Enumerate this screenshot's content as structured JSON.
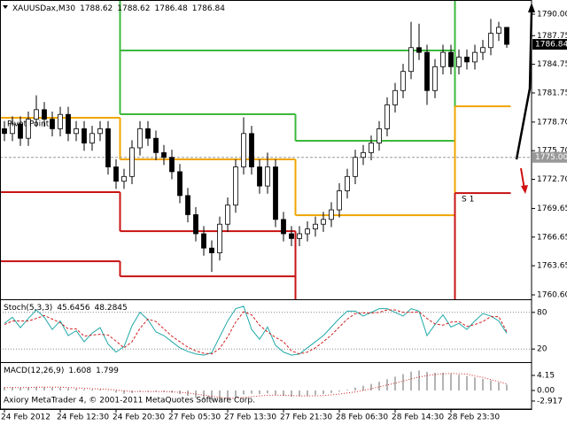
{
  "chart_data": [
    {
      "type": "candlestick",
      "title": "XAUUSDax,M30",
      "categories": [
        "24 Feb 2012",
        null,
        null,
        null,
        null,
        null,
        null,
        "24 Feb 12:30",
        null,
        null,
        null,
        null,
        null,
        null,
        "24 Feb 20:30",
        null,
        null,
        null,
        null,
        null,
        null,
        "27 Feb 05:30",
        null,
        null,
        null,
        null,
        null,
        null,
        "27 Feb 13:30",
        null,
        null,
        null,
        null,
        null,
        null,
        "27 Feb 21:30",
        null,
        null,
        null,
        null,
        null,
        null,
        "28 Feb 06:30",
        null,
        null,
        null,
        null,
        null,
        null,
        "28 Feb 14:30",
        null,
        null,
        null,
        null,
        null,
        null,
        "28 Feb 23:30",
        null,
        null,
        null,
        null,
        null,
        null,
        null
      ],
      "open": [
        1778,
        1777.5,
        1778.5,
        1777,
        1779,
        1780,
        1779,
        1778,
        1779.5,
        1777.5,
        1778,
        1776.5,
        1777.5,
        1778,
        1774,
        1772.5,
        1773,
        1776,
        1778,
        1777,
        1775.5,
        1775,
        1773.5,
        1771,
        1769,
        1767,
        1765.5,
        1765,
        1768,
        1770,
        1774,
        1777.5,
        1774,
        1772,
        1774,
        1768.5,
        1767,
        1766.5,
        1767,
        1767.5,
        1768,
        1768.5,
        1769.5,
        1771.5,
        1773,
        1775,
        1775.5,
        1776.5,
        1778,
        1780.5,
        1782,
        1784,
        1786.5,
        1786,
        1782,
        1784.5,
        1786,
        1784.5,
        1785.5,
        1785,
        1786,
        1786.5,
        1788,
        1788.62
      ],
      "high": [
        1778.8,
        1779.3,
        1779.3,
        1779.8,
        1781.5,
        1780.8,
        1779.8,
        1780.3,
        1780.3,
        1778.8,
        1778.8,
        1778.3,
        1778.8,
        1778.8,
        1774.8,
        1773.8,
        1776.8,
        1778.8,
        1778.8,
        1777.8,
        1776.3,
        1775.8,
        1774.3,
        1771.8,
        1769.8,
        1767.8,
        1766.3,
        1768.8,
        1770.8,
        1774.8,
        1779.2,
        1778.3,
        1774.8,
        1775.5,
        1774.8,
        1769.3,
        1767.8,
        1767.8,
        1768.3,
        1768.8,
        1769.3,
        1770.3,
        1772.3,
        1773.8,
        1775.8,
        1776.3,
        1777.3,
        1778.8,
        1781.3,
        1782.8,
        1784.8,
        1789.2,
        1789,
        1786.8,
        1785.3,
        1786.8,
        1786.8,
        1786.3,
        1786.3,
        1786.8,
        1787.3,
        1789.5,
        1789.2,
        1788.62
      ],
      "low": [
        1776.7,
        1776.7,
        1776.2,
        1776.2,
        1778.2,
        1778.2,
        1777.2,
        1777.2,
        1776.7,
        1776.7,
        1775.7,
        1775.7,
        1776.7,
        1773.2,
        1771.7,
        1771.7,
        1772.2,
        1775.2,
        1776.2,
        1774.7,
        1774.2,
        1772.7,
        1770.2,
        1768.2,
        1766.2,
        1764.7,
        1763,
        1764.2,
        1767.2,
        1769.2,
        1773.2,
        1773.2,
        1771.2,
        1771.2,
        1767.7,
        1766.2,
        1765.7,
        1765.7,
        1766.2,
        1766.7,
        1767.2,
        1767.7,
        1768.7,
        1770.7,
        1772.2,
        1774.2,
        1774.7,
        1775.7,
        1777.2,
        1779.7,
        1781.2,
        1783.2,
        1785.2,
        1780.5,
        1781.2,
        1783.7,
        1783.7,
        1783.7,
        1784.2,
        1784.2,
        1785.2,
        1785.7,
        1787.2,
        1786.48
      ],
      "close": [
        1777.5,
        1778.5,
        1777,
        1779,
        1780,
        1779,
        1778,
        1779.5,
        1777.5,
        1778,
        1776.5,
        1777.5,
        1778,
        1774,
        1772.5,
        1773,
        1776,
        1778,
        1777,
        1775.5,
        1775,
        1773.5,
        1771,
        1769,
        1767,
        1765.5,
        1765,
        1768,
        1770,
        1774,
        1777.5,
        1774,
        1772,
        1774,
        1768.5,
        1767,
        1766.5,
        1767,
        1767.5,
        1768,
        1768.5,
        1769.5,
        1771.5,
        1773,
        1775,
        1775.5,
        1776.5,
        1778,
        1780.5,
        1782,
        1784,
        1786.5,
        1786,
        1782,
        1784.5,
        1786,
        1784.5,
        1785.5,
        1785,
        1786,
        1786.5,
        1788,
        1788.62,
        1786.84
      ],
      "series": [
        {
          "color": "#3cb83c",
          "values": [
            null,
            null,
            null,
            null,
            null,
            null,
            null,
            null,
            null,
            null,
            null,
            null,
            null,
            null,
            null,
            1786.2,
            1786.2,
            1786.2,
            1786.2,
            1786.2,
            1786.2,
            1786.2,
            1786.2,
            1786.2,
            1786.2,
            1786.2,
            1786.2,
            1786.2,
            1786.2,
            1786.2,
            1786.2,
            1786.2,
            1786.2,
            1786.2,
            1786.2,
            1786.2,
            1786.2,
            1786.2,
            1786.2,
            1786.2,
            1786.2,
            1786.2,
            1786.2,
            1786.2,
            1786.2,
            1786.2,
            1786.2,
            1786.2,
            1786.2,
            1786.2,
            1786.2,
            1786.2,
            1786.2,
            1786.2,
            1786.2,
            1786.2,
            1786.2,
            null,
            null,
            null,
            null,
            null,
            null,
            null
          ]
        },
        {
          "color": "#3cb83c",
          "values": [
            null,
            null,
            null,
            null,
            null,
            null,
            null,
            null,
            null,
            null,
            null,
            null,
            null,
            null,
            null,
            1779.52,
            1779.52,
            1779.52,
            1779.52,
            1779.52,
            1779.52,
            1779.52,
            1779.52,
            1779.52,
            1779.52,
            1779.52,
            1779.52,
            1779.52,
            1779.52,
            1779.52,
            1779.52,
            1779.52,
            1779.52,
            1779.52,
            1779.52,
            1779.52,
            1779.52,
            1776.74,
            1776.74,
            1776.74,
            1776.74,
            1776.74,
            1776.74,
            1776.74,
            1776.74,
            1776.74,
            1776.74,
            1776.74,
            1776.74,
            1776.74,
            1776.74,
            1776.74,
            1776.74,
            1776.74,
            1776.74,
            1776.74,
            1776.74,
            null,
            null,
            null,
            null,
            null,
            null,
            null
          ]
        },
        {
          "name": "Pivot Point",
          "color": "#f0a500",
          "values": [
            1779.15,
            1779.15,
            1779.15,
            1779.15,
            1779.15,
            1779.15,
            1779.15,
            1779.15,
            1779.15,
            1779.15,
            1779.15,
            1779.15,
            1779.15,
            1779.15,
            1779.15,
            1774.79,
            1774.79,
            1774.79,
            1774.79,
            1774.79,
            1774.79,
            1774.79,
            1774.79,
            1774.79,
            1774.79,
            1774.79,
            1774.79,
            1774.79,
            1774.79,
            1774.79,
            1774.79,
            1774.79,
            1774.79,
            1774.79,
            1774.79,
            1774.79,
            1774.79,
            1768.94,
            1768.94,
            1768.94,
            1768.94,
            1768.94,
            1768.94,
            1768.94,
            1768.94,
            1768.94,
            1768.94,
            1768.94,
            1768.94,
            1768.94,
            1768.94,
            1768.94,
            1768.94,
            1768.94,
            1768.94,
            1768.94,
            1768.94,
            1780.35,
            1780.35,
            1780.35,
            1780.35,
            1780.35,
            1780.35,
            1780.35
          ]
        },
        {
          "name": "S 1",
          "color": "#c81414",
          "values": [
            1771.36,
            1771.36,
            1771.36,
            1771.36,
            1771.36,
            1771.36,
            1771.36,
            1771.36,
            1771.36,
            1771.36,
            1771.36,
            1771.36,
            1771.36,
            1771.36,
            1771.36,
            1767.27,
            1767.27,
            1767.27,
            1767.27,
            1767.27,
            1767.27,
            1767.27,
            1767.27,
            1767.27,
            1767.27,
            1767.27,
            1767.27,
            1767.27,
            1767.27,
            1767.27,
            1767.27,
            1767.27,
            1767.27,
            1767.27,
            1767.27,
            1767.27,
            1767.27,
            null,
            null,
            null,
            null,
            null,
            null,
            null,
            null,
            null,
            null,
            null,
            null,
            null,
            null,
            null,
            null,
            null,
            null,
            null,
            null,
            1771.26,
            1771.26,
            1771.26,
            1771.26,
            1771.26,
            1771.26,
            1771.26
          ]
        },
        {
          "color": "#c81414",
          "values": [
            1764.12,
            1764.12,
            1764.12,
            1764.12,
            1764.12,
            1764.12,
            1764.12,
            1764.12,
            1764.12,
            1764.12,
            1764.12,
            1764.12,
            1764.12,
            1764.12,
            1764.12,
            1762.54,
            1762.54,
            1762.54,
            1762.54,
            1762.54,
            1762.54,
            1762.54,
            1762.54,
            1762.54,
            1762.54,
            1762.54,
            1762.54,
            1762.54,
            1762.54,
            1762.54,
            1762.54,
            1762.54,
            1762.54,
            1762.54,
            1762.54,
            1762.54,
            1762.54,
            null,
            null,
            null,
            null,
            null,
            null,
            null,
            null,
            null,
            null,
            null,
            null,
            null,
            null,
            null,
            null,
            null,
            null,
            null,
            null,
            null,
            null,
            null,
            null,
            null,
            null,
            null
          ]
        }
      ],
      "hline": {
        "value": 1775,
        "label": "1775.00"
      },
      "ylim": [
        1760.23,
        1791.3
      ],
      "yticks": [
        {
          "value": 1790,
          "label": "1790.00"
        },
        {
          "value": 1787.75,
          "label": "1787.75"
        },
        {
          "value": 1784.75,
          "label": "1784.75"
        },
        1781.75,
        {
          "value": 1778.7,
          "label": "1778.70"
        },
        {
          "value": 1775.7,
          "label": "1775.70"
        },
        {
          "value": 1772.7,
          "label": "1772.70"
        },
        1769.65,
        1766.65,
        1763.65,
        {
          "value": 1760.6,
          "label": "1760.60"
        }
      ],
      "grid": false
    },
    {
      "type": "line",
      "title": "Stoch(5,3,3)",
      "series": [
        {
          "color": "#20a8a8",
          "line_style": "solid",
          "values": [
            62,
            72,
            55,
            70,
            84,
            72,
            52,
            66,
            42,
            50,
            32,
            46,
            55,
            28,
            15,
            24,
            58,
            80,
            68,
            48,
            42,
            32,
            22,
            16,
            12,
            10,
            14,
            40,
            66,
            86,
            90,
            52,
            36,
            56,
            26,
            15,
            10,
            12,
            22,
            32,
            42,
            56,
            70,
            82,
            82,
            74,
            80,
            86,
            86,
            80,
            74,
            86,
            82,
            42,
            60,
            76,
            56,
            62,
            52,
            66,
            78,
            74,
            66,
            45.6456
          ]
        },
        {
          "color": "#d22020",
          "line_style": "dashed",
          "values": [
            60,
            66,
            66,
            66,
            70,
            75,
            69,
            63,
            53,
            53,
            41,
            43,
            44,
            43,
            33,
            22,
            32,
            54,
            69,
            65,
            53,
            41,
            32,
            23,
            17,
            13,
            12,
            21,
            40,
            64,
            81,
            76,
            59,
            48,
            39,
            32,
            17,
            12,
            15,
            22,
            32,
            43,
            56,
            69,
            78,
            79,
            79,
            80,
            84,
            84,
            80,
            80,
            81,
            70,
            61,
            59,
            64,
            65,
            57,
            60,
            65,
            73,
            73,
            48.2845
          ]
        }
      ],
      "ylim": [
        0,
        100
      ],
      "yticks": [
        20,
        80
      ],
      "grid": true
    },
    {
      "type": "macd",
      "title": "MACD(12,26,9)",
      "annotation": "Axiory MetaTrader 4, © 2001-2011 MetaQuotes Software Corp.",
      "series": [
        {
          "type": "bar",
          "color": "#b4b4b4",
          "values": [
            0.9,
            0.9,
            0.8,
            0.9,
            1.0,
            1.0,
            0.8,
            0.8,
            0.6,
            0.5,
            0.3,
            0.3,
            0.3,
            -0.1,
            -0.6,
            -0.9,
            -0.7,
            -0.3,
            -0.2,
            -0.3,
            -0.4,
            -0.6,
            -1.0,
            -1.5,
            -2.0,
            -2.5,
            -2.8,
            -2.7,
            -2.4,
            -1.8,
            -1.1,
            -0.9,
            -1.0,
            -0.8,
            -1.2,
            -1.5,
            -1.7,
            -1.6,
            -1.5,
            -1.3,
            -1.0,
            -0.7,
            -0.3,
            0.2,
            0.8,
            1.3,
            1.8,
            2.4,
            3.1,
            3.8,
            4.5,
            5.2,
            5.5,
            5.1,
            4.9,
            4.9,
            4.6,
            4.3,
            4.0,
            3.6,
            3.2,
            2.8,
            2.2,
            1.608
          ]
        },
        {
          "type": "line",
          "color": "#d22020",
          "line_style": "dotted",
          "values": [
            0.8,
            0.8,
            0.8,
            0.8,
            0.9,
            0.9,
            0.9,
            0.9,
            0.8,
            0.7,
            0.6,
            0.5,
            0.4,
            0.3,
            0.1,
            -0.1,
            -0.3,
            -0.3,
            -0.3,
            -0.3,
            -0.3,
            -0.4,
            -0.5,
            -0.7,
            -1.0,
            -1.3,
            -1.6,
            -1.9,
            -2.1,
            -2.1,
            -1.9,
            -1.7,
            -1.5,
            -1.3,
            -1.3,
            -1.3,
            -1.4,
            -1.5,
            -1.5,
            -1.5,
            -1.4,
            -1.2,
            -1.0,
            -0.7,
            -0.4,
            0.0,
            0.5,
            1.0,
            1.5,
            2.0,
            2.6,
            3.2,
            3.7,
            4.1,
            4.4,
            4.6,
            4.7,
            4.6,
            4.5,
            4.0,
            3.6,
            3.0,
            2.4,
            1.799
          ]
        }
      ],
      "ylim": [
        -4.88,
        7.32
      ],
      "yticks": [
        4.15,
        {
          "value": 0,
          "label": "0.00"
        },
        -2.917
      ],
      "grid": false
    }
  ]
}
